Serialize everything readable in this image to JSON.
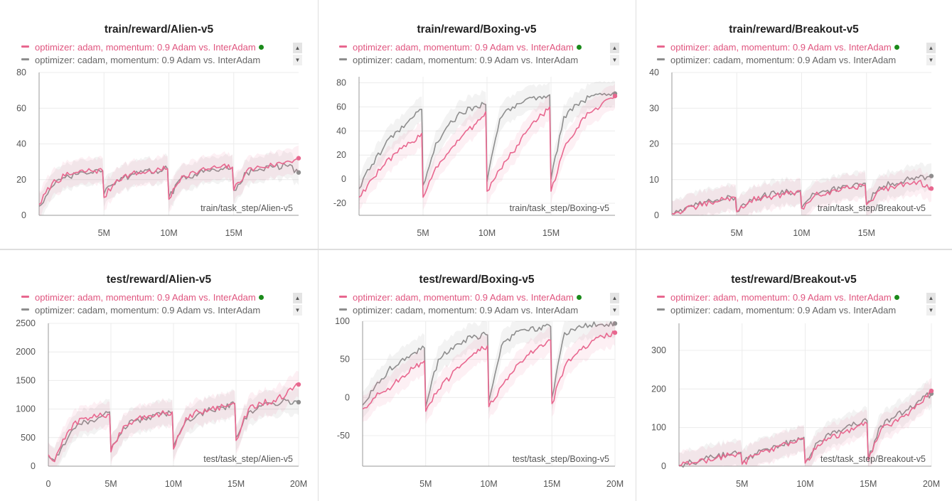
{
  "legend": {
    "series_a": "optimizer: adam, momentum: 0.9 Adam vs. InterAdam",
    "series_b": "optimizer: cadam, momentum: 0.9 Adam vs. InterAdam",
    "color_a": "#e8678f",
    "color_b": "#8e8e8e",
    "status_dot_color": "#1a8a1a"
  },
  "chart_data": [
    {
      "type": "line",
      "title": "train/reward/Alien-v5",
      "xlabel": "train/task_step/Alien-v5",
      "xlim": [
        0,
        20000000
      ],
      "ylim": [
        0,
        80
      ],
      "xticks": [
        5000000,
        10000000,
        15000000
      ],
      "xticklabels": [
        "5M",
        "10M",
        "15M"
      ],
      "yticks": [
        0,
        20,
        40,
        60,
        80
      ],
      "yticklabels": [
        "0",
        "20",
        "40",
        "60",
        "80"
      ],
      "series": [
        {
          "name": "optimizer: adam, momentum: 0.9 Adam vs. InterAdam",
          "x": [
            0,
            1000000,
            2000000,
            3000000,
            4000000,
            4900000,
            5000000,
            6000000,
            7000000,
            8000000,
            9000000,
            9900000,
            10000000,
            11000000,
            12000000,
            13000000,
            14000000,
            14900000,
            15000000,
            16000000,
            17000000,
            18000000,
            19000000,
            20000000
          ],
          "y": [
            6,
            18,
            22,
            24,
            25,
            25,
            10,
            20,
            23,
            24,
            25,
            26,
            9,
            22,
            24,
            26,
            27,
            27,
            14,
            25,
            27,
            28,
            30,
            32
          ]
        },
        {
          "name": "optimizer: cadam, momentum: 0.9 Adam vs. InterAdam",
          "x": [
            0,
            1000000,
            2000000,
            3000000,
            4000000,
            4900000,
            5000000,
            6000000,
            7000000,
            8000000,
            9000000,
            9900000,
            10000000,
            11000000,
            12000000,
            13000000,
            14000000,
            14900000,
            15000000,
            16000000,
            17000000,
            18000000,
            19000000,
            20000000
          ],
          "y": [
            5,
            16,
            21,
            23,
            24,
            25,
            12,
            20,
            22,
            24,
            25,
            26,
            10,
            21,
            23,
            25,
            26,
            27,
            14,
            24,
            26,
            27,
            28,
            24
          ]
        }
      ]
    },
    {
      "type": "line",
      "title": "train/reward/Boxing-v5",
      "xlabel": "train/task_step/Boxing-v5",
      "xlim": [
        0,
        20000000
      ],
      "ylim": [
        -30,
        85
      ],
      "xticks": [
        5000000,
        10000000,
        15000000
      ],
      "xticklabels": [
        "5M",
        "10M",
        "15M"
      ],
      "yticks": [
        -20,
        0,
        20,
        40,
        60,
        80
      ],
      "yticklabels": [
        "-20",
        "0",
        "20",
        "40",
        "60",
        "80"
      ],
      "series": [
        {
          "name": "optimizer: adam, momentum: 0.9 Adam vs. InterAdam",
          "x": [
            0,
            1000000,
            2000000,
            3000000,
            4000000,
            4900000,
            5000000,
            6000000,
            7000000,
            8000000,
            9000000,
            9900000,
            10000000,
            11000000,
            12000000,
            13000000,
            14000000,
            14900000,
            15000000,
            16000000,
            17000000,
            18000000,
            19000000,
            20000000
          ],
          "y": [
            -15,
            0,
            12,
            22,
            30,
            38,
            -15,
            10,
            22,
            35,
            45,
            56,
            -10,
            8,
            22,
            38,
            50,
            60,
            -10,
            25,
            42,
            55,
            63,
            69
          ]
        },
        {
          "name": "optimizer: cadam, momentum: 0.9 Adam vs. InterAdam",
          "x": [
            0,
            1000000,
            2000000,
            3000000,
            4000000,
            4900000,
            5000000,
            6000000,
            7000000,
            8000000,
            9000000,
            9900000,
            10000000,
            11000000,
            12000000,
            13000000,
            14000000,
            14900000,
            15000000,
            16000000,
            17000000,
            18000000,
            19000000,
            20000000
          ],
          "y": [
            -8,
            12,
            28,
            40,
            50,
            58,
            -5,
            30,
            45,
            55,
            60,
            62,
            -2,
            50,
            60,
            66,
            68,
            70,
            0,
            52,
            62,
            68,
            70,
            71
          ]
        }
      ]
    },
    {
      "type": "line",
      "title": "train/reward/Breakout-v5",
      "xlabel": "train/task_step/Breakout-v5",
      "xlim": [
        0,
        20000000
      ],
      "ylim": [
        0,
        40
      ],
      "xticks": [
        5000000,
        10000000,
        15000000
      ],
      "xticklabels": [
        "5M",
        "10M",
        "15M"
      ],
      "yticks": [
        0,
        10,
        20,
        30,
        40
      ],
      "yticklabels": [
        "0",
        "10",
        "20",
        "30",
        "40"
      ],
      "series": [
        {
          "name": "optimizer: adam, momentum: 0.9 Adam vs. InterAdam",
          "x": [
            0,
            1000000,
            2000000,
            3000000,
            4000000,
            4900000,
            5000000,
            6000000,
            7000000,
            8000000,
            9000000,
            9900000,
            10000000,
            11000000,
            12000000,
            13000000,
            14000000,
            14900000,
            15000000,
            16000000,
            17000000,
            18000000,
            19000000,
            20000000
          ],
          "y": [
            0.5,
            1.5,
            2.5,
            3.5,
            4.5,
            5,
            1,
            4,
            5,
            5.5,
            6,
            6.5,
            2,
            5.5,
            6.5,
            7,
            8,
            8.5,
            3,
            7,
            8,
            9,
            9.5,
            7.5
          ]
        },
        {
          "name": "optimizer: cadam, momentum: 0.9 Adam vs. InterAdam",
          "x": [
            0,
            1000000,
            2000000,
            3000000,
            4000000,
            4900000,
            5000000,
            6000000,
            7000000,
            8000000,
            9000000,
            9900000,
            10000000,
            11000000,
            12000000,
            13000000,
            14000000,
            14900000,
            15000000,
            16000000,
            17000000,
            18000000,
            19000000,
            20000000
          ],
          "y": [
            0.5,
            2,
            3,
            4,
            4.5,
            5,
            1,
            4.5,
            5.5,
            6,
            6.5,
            7,
            2,
            6,
            7,
            7.5,
            8.5,
            9,
            3,
            8,
            9,
            10,
            10.5,
            11
          ]
        }
      ]
    },
    {
      "type": "line",
      "title": "test/reward/Alien-v5",
      "xlabel": "test/task_step/Alien-v5",
      "xlim": [
        0,
        20000000
      ],
      "ylim": [
        0,
        2500
      ],
      "xticks": [
        0,
        5000000,
        10000000,
        15000000,
        20000000
      ],
      "xticklabels": [
        "0",
        "5M",
        "10M",
        "15M",
        "20M"
      ],
      "yticks": [
        0,
        500,
        1000,
        1500,
        2000,
        2500
      ],
      "yticklabels": [
        "0",
        "500",
        "1000",
        "1500",
        "2000",
        "2500"
      ],
      "series": [
        {
          "name": "optimizer: adam, momentum: 0.9 Adam vs. InterAdam",
          "x": [
            0,
            500000,
            1000000,
            2000000,
            3000000,
            4000000,
            4900000,
            5000000,
            6000000,
            7000000,
            8000000,
            9000000,
            9900000,
            10000000,
            11000000,
            12000000,
            13000000,
            14000000,
            14900000,
            15000000,
            16000000,
            17000000,
            18000000,
            19000000,
            20000000
          ],
          "y": [
            200,
            80,
            350,
            750,
            850,
            880,
            900,
            250,
            700,
            820,
            880,
            920,
            950,
            300,
            850,
            950,
            1000,
            1050,
            1100,
            450,
            1000,
            1100,
            1150,
            1250,
            1430
          ]
        },
        {
          "name": "optimizer: cadam, momentum: 0.9 Adam vs. InterAdam",
          "x": [
            0,
            500000,
            1000000,
            2000000,
            3000000,
            4000000,
            4900000,
            5000000,
            6000000,
            7000000,
            8000000,
            9000000,
            9900000,
            10000000,
            11000000,
            12000000,
            13000000,
            14000000,
            14900000,
            15000000,
            16000000,
            17000000,
            18000000,
            19000000,
            20000000
          ],
          "y": [
            180,
            100,
            300,
            650,
            780,
            850,
            950,
            300,
            680,
            800,
            860,
            900,
            930,
            350,
            800,
            920,
            980,
            1030,
            1080,
            500,
            950,
            1050,
            1100,
            1150,
            1120
          ]
        }
      ]
    },
    {
      "type": "line",
      "title": "test/reward/Boxing-v5",
      "xlabel": "test/task_step/Boxing-v5",
      "xlim": [
        0,
        20000000
      ],
      "ylim": [
        -90,
        100
      ],
      "xticks": [
        5000000,
        10000000,
        15000000,
        20000000
      ],
      "xticklabels": [
        "5M",
        "10M",
        "15M",
        "20M"
      ],
      "yticks": [
        -50,
        0,
        50,
        100
      ],
      "yticklabels": [
        "-50",
        "0",
        "50",
        "100"
      ],
      "series": [
        {
          "name": "optimizer: adam, momentum: 0.9 Adam vs. InterAdam",
          "x": [
            0,
            1000000,
            2000000,
            3000000,
            4000000,
            4900000,
            5000000,
            6000000,
            7000000,
            8000000,
            9000000,
            9900000,
            10000000,
            11000000,
            12000000,
            13000000,
            14000000,
            14900000,
            15000000,
            16000000,
            17000000,
            18000000,
            19000000,
            20000000
          ],
          "y": [
            -15,
            0,
            12,
            25,
            38,
            48,
            -18,
            10,
            28,
            45,
            58,
            68,
            -12,
            15,
            35,
            55,
            68,
            75,
            -8,
            40,
            58,
            70,
            80,
            85
          ]
        },
        {
          "name": "optimizer: cadam, momentum: 0.9 Adam vs. InterAdam",
          "x": [
            0,
            1000000,
            2000000,
            3000000,
            4000000,
            4900000,
            5000000,
            6000000,
            7000000,
            8000000,
            9000000,
            9900000,
            10000000,
            11000000,
            12000000,
            13000000,
            14000000,
            14900000,
            15000000,
            16000000,
            17000000,
            18000000,
            19000000,
            20000000
          ],
          "y": [
            -10,
            15,
            35,
            48,
            58,
            65,
            -12,
            50,
            65,
            75,
            80,
            82,
            -5,
            68,
            82,
            88,
            92,
            93,
            0,
            85,
            92,
            95,
            96,
            97
          ]
        }
      ]
    },
    {
      "type": "line",
      "title": "test/reward/Breakout-v5",
      "xlabel": "test/task_step/Breakout-v5",
      "xlim": [
        0,
        20000000
      ],
      "ylim": [
        0,
        370
      ],
      "xticks": [
        5000000,
        10000000,
        15000000,
        20000000
      ],
      "xticklabels": [
        "5M",
        "10M",
        "15M",
        "20M"
      ],
      "yticks": [
        0,
        100,
        200,
        300
      ],
      "yticklabels": [
        "0",
        "100",
        "200",
        "300"
      ],
      "series": [
        {
          "name": "optimizer: adam, momentum: 0.9 Adam vs. InterAdam",
          "x": [
            0,
            1000000,
            2000000,
            3000000,
            4000000,
            4900000,
            5000000,
            6000000,
            7000000,
            8000000,
            9000000,
            9900000,
            10000000,
            11000000,
            12000000,
            13000000,
            14000000,
            14900000,
            15000000,
            16000000,
            17000000,
            18000000,
            19000000,
            20000000
          ],
          "y": [
            2,
            8,
            15,
            22,
            28,
            32,
            5,
            30,
            42,
            52,
            60,
            70,
            8,
            55,
            72,
            85,
            100,
            110,
            15,
            95,
            115,
            135,
            160,
            195
          ]
        },
        {
          "name": "optimizer: cadam, momentum: 0.9 Adam vs. InterAdam",
          "x": [
            0,
            1000000,
            2000000,
            3000000,
            4000000,
            4900000,
            5000000,
            6000000,
            7000000,
            8000000,
            9000000,
            9900000,
            10000000,
            11000000,
            12000000,
            13000000,
            14000000,
            14900000,
            15000000,
            16000000,
            17000000,
            18000000,
            19000000,
            20000000
          ],
          "y": [
            2,
            10,
            18,
            25,
            30,
            36,
            6,
            32,
            45,
            55,
            65,
            75,
            10,
            62,
            80,
            95,
            108,
            118,
            18,
            105,
            125,
            145,
            170,
            188
          ]
        }
      ]
    }
  ]
}
